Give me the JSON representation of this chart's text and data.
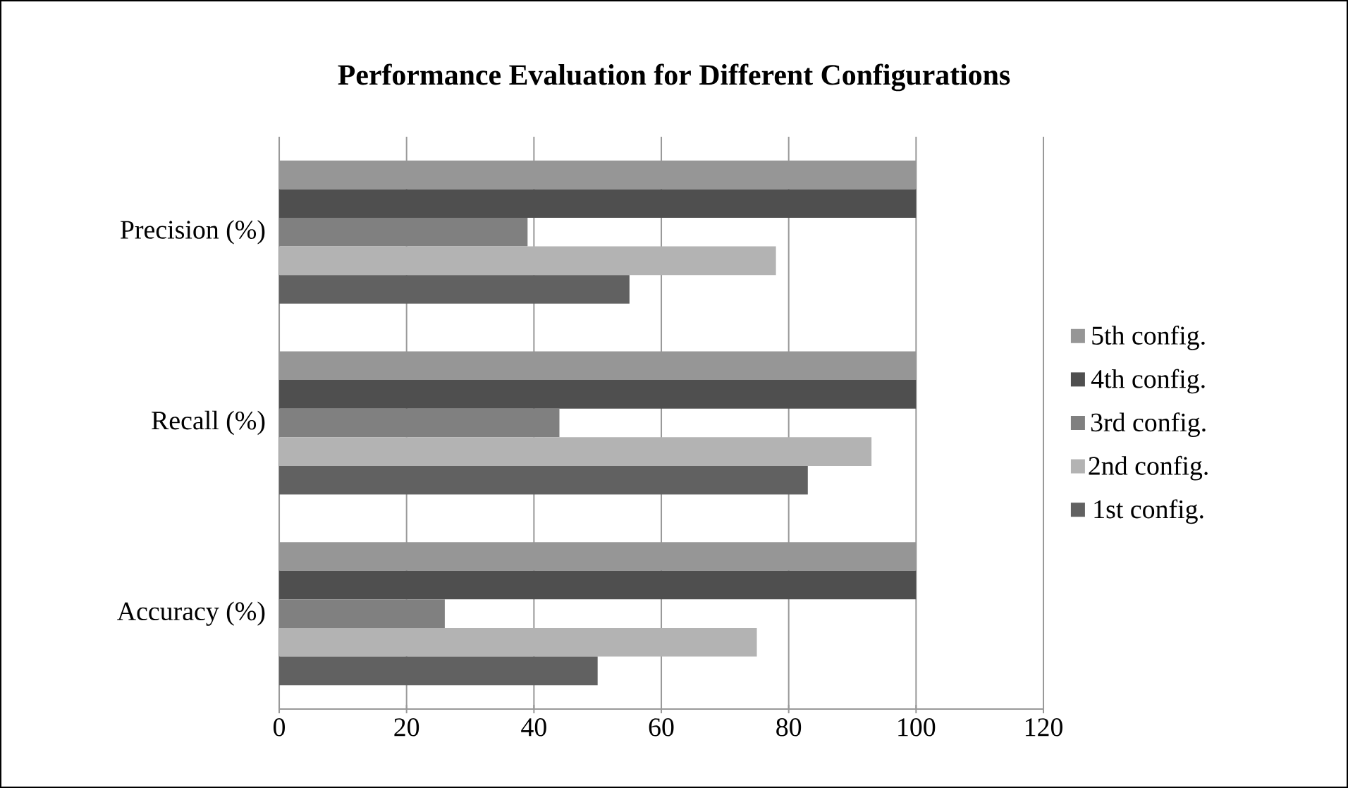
{
  "chart_data": {
    "type": "bar",
    "orientation": "horizontal",
    "title": "Performance Evaluation for Different Configurations",
    "categories": [
      "Precision (%)",
      "Recall (%)",
      "Accuracy (%)"
    ],
    "series": [
      {
        "name": "5th config.",
        "color": "#969696",
        "values": [
          100,
          100,
          100
        ]
      },
      {
        "name": "4th config.",
        "color": "#4f4f4f",
        "values": [
          100,
          100,
          100
        ]
      },
      {
        "name": "3rd config.",
        "color": "#808080",
        "values": [
          39,
          44,
          26
        ]
      },
      {
        "name": "2nd config.",
        "color": "#b3b3b3",
        "values": [
          78,
          93,
          75
        ]
      },
      {
        "name": "1st config.",
        "color": "#616161",
        "values": [
          55,
          83,
          50
        ]
      }
    ],
    "xlim": [
      0,
      120
    ],
    "xticks": [
      0,
      20,
      40,
      60,
      80,
      100,
      120
    ],
    "grid": "x",
    "legend": "right"
  }
}
